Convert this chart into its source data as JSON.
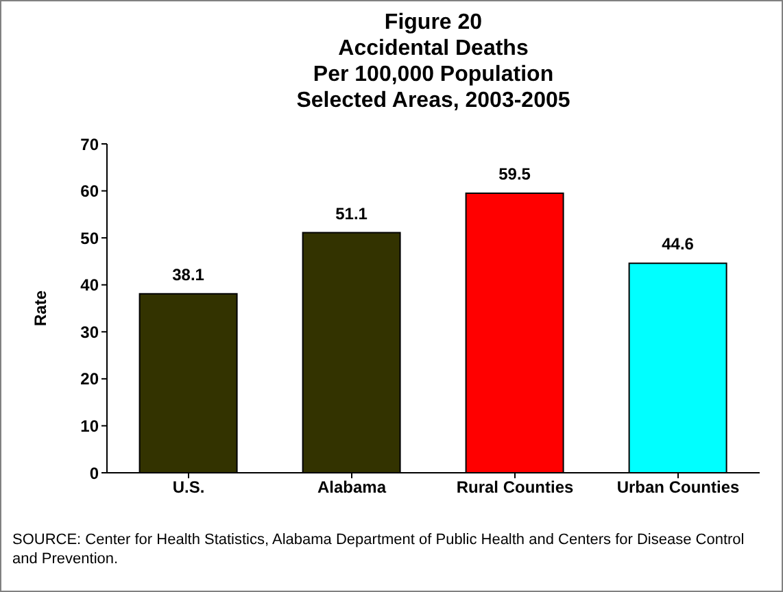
{
  "chart_data": {
    "type": "bar",
    "title": "Figure 20\nAccidental Deaths\nPer 100,000 Population\nSelected Areas, 2003-2005",
    "ylabel": "Rate",
    "categories": [
      "U.S.",
      "Alabama",
      "Rural Counties",
      "Urban Counties"
    ],
    "values": [
      38.1,
      51.1,
      59.5,
      44.6
    ],
    "colors": [
      "#333300",
      "#333300",
      "#ff0000",
      "#00ffff"
    ],
    "ylim": [
      0,
      70
    ],
    "yticks": [
      0,
      10,
      20,
      30,
      40,
      50,
      60,
      70
    ],
    "data_labels": true,
    "annotations": [
      "SOURCE:  Center for Health Statistics, Alabama Department of Public Health and Centers for Disease Control and Prevention."
    ]
  }
}
